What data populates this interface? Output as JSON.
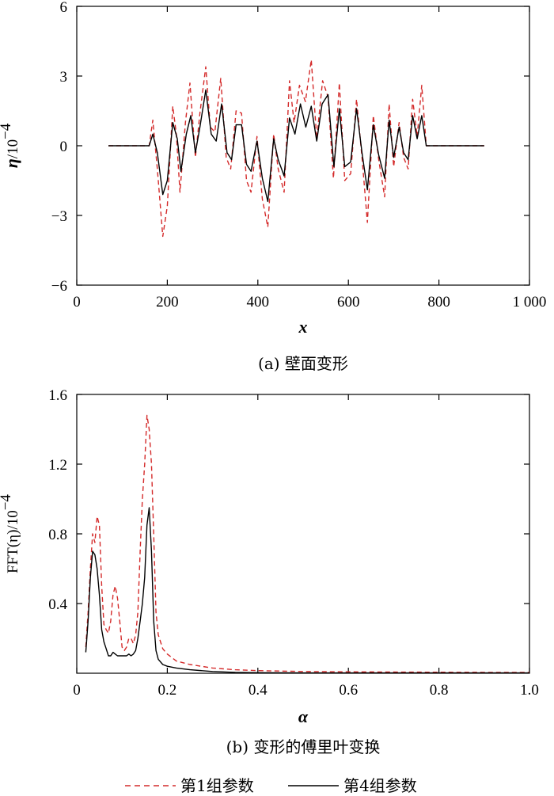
{
  "chart_data": [
    {
      "type": "line",
      "caption": "(a) 壁面变形",
      "xlabel": "x",
      "ylabel_main": "η",
      "ylabel_unit": "/10",
      "ylabel_exp": "−4",
      "xlim": [
        0,
        1000
      ],
      "ylim": [
        -6,
        6
      ],
      "x_ticks": [
        0,
        200,
        400,
        600,
        800,
        1000
      ],
      "x_tick_labels": [
        "0",
        "200",
        "400",
        "600",
        "800",
        "1 000"
      ],
      "y_ticks": [
        -6,
        -3,
        0,
        3,
        6
      ],
      "y_tick_labels": [
        "−6",
        "−3",
        "0",
        "3",
        "6"
      ],
      "grid": false,
      "series": [
        {
          "name": "第1组参数",
          "color": "#d42a2a",
          "dash": "dashed",
          "x": [
            70,
            160,
            168,
            178,
            190,
            200,
            212,
            220,
            228,
            240,
            250,
            262,
            272,
            285,
            295,
            305,
            318,
            330,
            340,
            352,
            364,
            375,
            385,
            398,
            410,
            422,
            435,
            445,
            458,
            470,
            480,
            492,
            505,
            518,
            530,
            543,
            555,
            567,
            580,
            592,
            605,
            618,
            630,
            642,
            655,
            667,
            680,
            690,
            700,
            712,
            722,
            732,
            742,
            752,
            762,
            772,
            780,
            900
          ],
          "y": [
            0,
            0,
            1.1,
            -1.0,
            -3.9,
            -2.6,
            1.7,
            0.5,
            -2.0,
            1.0,
            2.7,
            -0.5,
            1.4,
            3.4,
            0.8,
            0.6,
            2.9,
            -0.5,
            -1.0,
            1.5,
            1.4,
            -1.5,
            -2.0,
            0.4,
            -2.3,
            -3.5,
            0.5,
            -1.0,
            -2.0,
            2.8,
            1.0,
            2.6,
            1.9,
            3.7,
            0.3,
            2.8,
            2.1,
            -1.4,
            2.7,
            -1.5,
            -1.2,
            2.0,
            -0.5,
            -3.3,
            1.3,
            -0.6,
            -2.2,
            1.8,
            -0.9,
            1.0,
            -0.5,
            -1.0,
            2.0,
            0.4,
            2.6,
            0,
            0,
            0
          ]
        },
        {
          "name": "第4组参数",
          "color": "#000000",
          "dash": "solid",
          "x": [
            70,
            160,
            168,
            178,
            190,
            200,
            212,
            222,
            230,
            242,
            252,
            262,
            272,
            285,
            297,
            308,
            320,
            332,
            342,
            352,
            364,
            375,
            385,
            398,
            410,
            422,
            435,
            445,
            458,
            470,
            482,
            494,
            506,
            518,
            530,
            542,
            555,
            568,
            580,
            592,
            605,
            618,
            630,
            642,
            655,
            667,
            680,
            690,
            700,
            712,
            722,
            732,
            742,
            752,
            762,
            772,
            780,
            900
          ],
          "y": [
            0,
            0,
            0.5,
            -0.3,
            -2.1,
            -1.5,
            1.0,
            0.3,
            -1.1,
            0.5,
            1.3,
            -0.3,
            0.8,
            2.4,
            0.5,
            0.2,
            1.8,
            -0.3,
            -0.6,
            0.9,
            0.9,
            -0.8,
            -1.1,
            0.2,
            -1.4,
            -2.4,
            0.3,
            -0.6,
            -1.3,
            1.2,
            0.5,
            1.8,
            0.8,
            1.7,
            0.2,
            1.8,
            2.2,
            -0.9,
            1.6,
            -0.9,
            -0.7,
            1.6,
            -0.3,
            -1.9,
            0.9,
            -0.4,
            -1.4,
            1.1,
            -0.5,
            0.8,
            -0.3,
            -0.6,
            1.3,
            0.3,
            1.3,
            0,
            0,
            0
          ]
        }
      ]
    },
    {
      "type": "line",
      "caption": "(b) 变形的傅里叶变换",
      "xlabel": "α",
      "ylabel_main": "FFT(η)",
      "ylabel_unit": "/10",
      "ylabel_exp": "−4",
      "xlim": [
        0,
        1.0
      ],
      "ylim": [
        0,
        1.6
      ],
      "x_ticks": [
        0,
        0.2,
        0.4,
        0.6,
        0.8,
        1.0
      ],
      "x_tick_labels": [
        "0",
        "0.2",
        "0.4",
        "0.6",
        "0.8",
        "1.0"
      ],
      "y_ticks": [
        0.4,
        0.8,
        1.2,
        1.6
      ],
      "y_tick_labels": [
        "0.4",
        "0.8",
        "1.2",
        "1.6"
      ],
      "grid": false,
      "series": [
        {
          "name": "第1组参数",
          "color": "#d42a2a",
          "dash": "dashed",
          "x": [
            0.02,
            0.025,
            0.03,
            0.035,
            0.04,
            0.045,
            0.05,
            0.055,
            0.06,
            0.065,
            0.07,
            0.075,
            0.08,
            0.085,
            0.09,
            0.095,
            0.1,
            0.105,
            0.11,
            0.115,
            0.12,
            0.125,
            0.13,
            0.135,
            0.14,
            0.145,
            0.15,
            0.155,
            0.16,
            0.165,
            0.17,
            0.175,
            0.18,
            0.19,
            0.2,
            0.22,
            0.25,
            0.3,
            0.35,
            0.4,
            0.5,
            0.6,
            0.7,
            0.8,
            0.9,
            1.0
          ],
          "y": [
            0.15,
            0.35,
            0.6,
            0.8,
            0.75,
            0.9,
            0.85,
            0.5,
            0.28,
            0.25,
            0.23,
            0.3,
            0.45,
            0.5,
            0.43,
            0.3,
            0.15,
            0.13,
            0.15,
            0.2,
            0.2,
            0.17,
            0.22,
            0.35,
            0.7,
            1.0,
            1.2,
            1.48,
            1.4,
            1.2,
            0.8,
            0.35,
            0.22,
            0.14,
            0.11,
            0.07,
            0.05,
            0.03,
            0.02,
            0.015,
            0.01,
            0.008,
            0.007,
            0.006,
            0.005,
            0.005
          ]
        },
        {
          "name": "第4组参数",
          "color": "#000000",
          "dash": "solid",
          "x": [
            0.02,
            0.025,
            0.03,
            0.035,
            0.04,
            0.045,
            0.05,
            0.055,
            0.06,
            0.065,
            0.07,
            0.075,
            0.08,
            0.085,
            0.09,
            0.095,
            0.1,
            0.105,
            0.11,
            0.115,
            0.12,
            0.125,
            0.13,
            0.135,
            0.14,
            0.145,
            0.15,
            0.155,
            0.16,
            0.165,
            0.17,
            0.175,
            0.18,
            0.19,
            0.2,
            0.22,
            0.25,
            0.3,
            0.35,
            0.4,
            0.5,
            0.6,
            0.7,
            0.8,
            0.9,
            1.0
          ],
          "y": [
            0.12,
            0.3,
            0.55,
            0.7,
            0.68,
            0.6,
            0.45,
            0.25,
            0.18,
            0.14,
            0.1,
            0.1,
            0.12,
            0.11,
            0.1,
            0.1,
            0.1,
            0.1,
            0.1,
            0.11,
            0.1,
            0.11,
            0.13,
            0.2,
            0.3,
            0.4,
            0.55,
            0.85,
            0.95,
            0.7,
            0.3,
            0.13,
            0.08,
            0.05,
            0.04,
            0.03,
            0.02,
            0.01,
            0.005,
            0.003,
            0.002,
            0.002,
            0.002,
            0.002,
            0.002,
            0.002
          ]
        }
      ]
    }
  ],
  "legend": {
    "placement": "bottom-center",
    "items": [
      {
        "label": "第1组参数",
        "color": "#d42a2a",
        "dash": "dashed"
      },
      {
        "label": "第4组参数",
        "color": "#000000",
        "dash": "solid"
      }
    ]
  }
}
